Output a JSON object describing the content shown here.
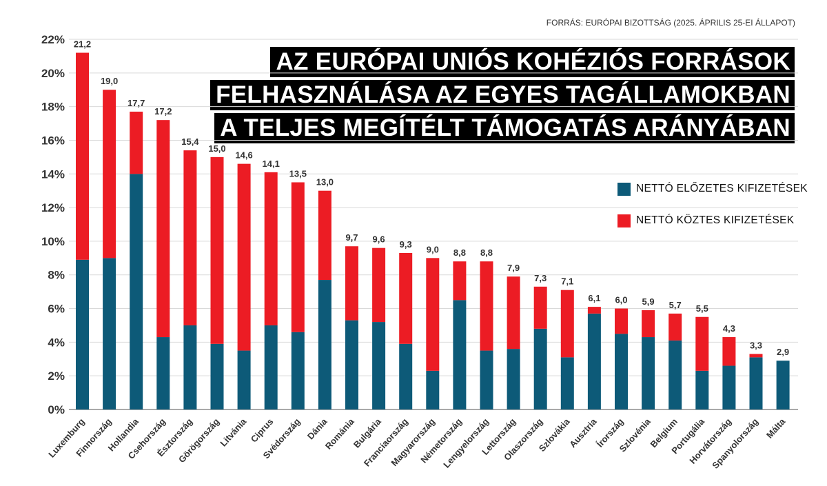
{
  "source": "FORRÁS: EURÓPAI BIZOTTSÁG (2025. ÁPRILIS 25-EI ÁLLAPOT)",
  "title_lines": [
    "AZ EURÓPAI UNIÓS KOHÉZIÓS FORRÁSOK",
    "FELHASZNÁLÁSA AZ EGYES TAGÁLLAMOKBAN",
    "A TELJES MEGÍTÉLT TÁMOGATÁS ARÁNYÁBAN"
  ],
  "colors": {
    "blue": "#0d5a78",
    "red": "#ec1c24",
    "highlight": "#e3161d",
    "axis": "#333333"
  },
  "chart_data": {
    "type": "bar",
    "stacked": true,
    "categories": [
      "Luxemburg",
      "Finnország",
      "Hollandia",
      "Csehország",
      "Észtország",
      "Görögország",
      "Litvánia",
      "Ciprus",
      "Svédország",
      "Dánia",
      "Románia",
      "Bulgária",
      "Franciaország",
      "Magyarország",
      "Németország",
      "Lengyelország",
      "Lettország",
      "Olaszország",
      "Szlovákia",
      "Ausztria",
      "Írország",
      "Szlovénia",
      "Belgium",
      "Portugália",
      "Horvátország",
      "Spanyolország",
      "Málta"
    ],
    "highlight_category": "Magyarország",
    "series": [
      {
        "name": "NETTÓ ELŐZETES KIFIZETÉSEK",
        "color": "#0d5a78",
        "values": [
          8.9,
          9.0,
          14.0,
          4.3,
          5.0,
          3.9,
          3.5,
          5.0,
          4.6,
          7.7,
          5.3,
          5.2,
          3.9,
          2.3,
          6.5,
          3.5,
          3.6,
          4.8,
          3.1,
          5.7,
          4.5,
          4.3,
          4.1,
          2.3,
          2.6,
          3.1,
          2.9
        ]
      },
      {
        "name": "NETTÓ KÖZTES KIFIZETÉSEK",
        "color": "#ec1c24",
        "values": [
          12.3,
          10.0,
          3.7,
          12.9,
          10.4,
          11.1,
          11.1,
          9.1,
          8.9,
          5.3,
          4.4,
          4.4,
          5.4,
          6.7,
          2.3,
          5.3,
          4.3,
          2.5,
          4.0,
          0.4,
          1.5,
          1.6,
          1.6,
          3.2,
          1.7,
          0.2,
          0.0
        ]
      }
    ],
    "totals": [
      "21,2",
      "19,0",
      "17,7",
      "17,2",
      "15,4",
      "15,0",
      "14,6",
      "14,1",
      "13,5",
      "13,0",
      "9,7",
      "9,6",
      "9,3",
      "9,0",
      "8,8",
      "8,8",
      "7,9",
      "7,3",
      "7,1",
      "6,1",
      "6,0",
      "5,9",
      "5,7",
      "5,5",
      "4,3",
      "3,3",
      "2,9"
    ],
    "y_ticks": [
      "0%",
      "2%",
      "4%",
      "6%",
      "8%",
      "10%",
      "12%",
      "14%",
      "16%",
      "18%",
      "20%",
      "22%"
    ],
    "ylim": [
      0,
      22
    ],
    "grid": true,
    "legend": "right",
    "xlabel": "",
    "ylabel": ""
  }
}
